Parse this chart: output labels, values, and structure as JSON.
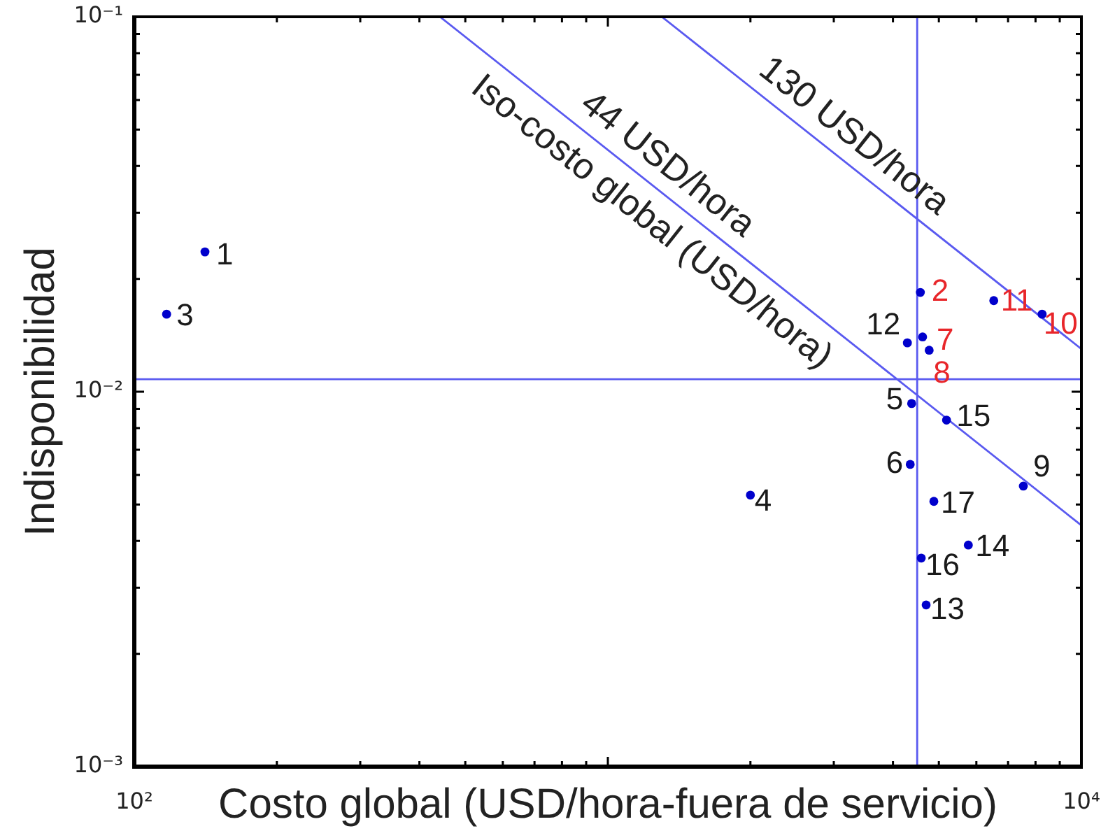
{
  "chart_data": {
    "type": "scatter",
    "xlabel": "Costo global (USD/hora-fuera de servicio)",
    "ylabel": "Indisponibilidad",
    "log": "xy",
    "grid": false,
    "legend": false,
    "xlim": [
      100,
      10000
    ],
    "ylim": [
      0.001,
      0.1
    ],
    "xticks": [
      {
        "value": 100,
        "label": "10²"
      },
      {
        "value": 200,
        "label": null
      },
      {
        "value": 300,
        "label": null
      },
      {
        "value": 400,
        "label": null
      },
      {
        "value": 500,
        "label": null
      },
      {
        "value": 600,
        "label": null
      },
      {
        "value": 700,
        "label": null
      },
      {
        "value": 800,
        "label": null
      },
      {
        "value": 900,
        "label": null
      },
      {
        "value": 1000,
        "label": null
      },
      {
        "value": 2000,
        "label": null
      },
      {
        "value": 3000,
        "label": null
      },
      {
        "value": 4000,
        "label": null
      },
      {
        "value": 5000,
        "label": null
      },
      {
        "value": 6000,
        "label": null
      },
      {
        "value": 7000,
        "label": null
      },
      {
        "value": 8000,
        "label": null
      },
      {
        "value": 9000,
        "label": null
      },
      {
        "value": 10000,
        "label": "10⁴"
      }
    ],
    "yticks": [
      {
        "value": 0.001,
        "label": "10⁻³"
      },
      {
        "value": 0.002,
        "label": null
      },
      {
        "value": 0.003,
        "label": null
      },
      {
        "value": 0.004,
        "label": null
      },
      {
        "value": 0.005,
        "label": null
      },
      {
        "value": 0.006,
        "label": null
      },
      {
        "value": 0.007,
        "label": null
      },
      {
        "value": 0.008,
        "label": null
      },
      {
        "value": 0.009,
        "label": null
      },
      {
        "value": 0.01,
        "label": "10⁻²"
      },
      {
        "value": 0.02,
        "label": null
      },
      {
        "value": 0.03,
        "label": null
      },
      {
        "value": 0.04,
        "label": null
      },
      {
        "value": 0.05,
        "label": null
      },
      {
        "value": 0.06,
        "label": null
      },
      {
        "value": 0.07,
        "label": null
      },
      {
        "value": 0.08,
        "label": null
      },
      {
        "value": 0.09,
        "label": null
      },
      {
        "value": 0.1,
        "label": "10⁻¹"
      }
    ],
    "series": [
      {
        "type": "scatter",
        "marker": "circle",
        "color": "#0000cc",
        "x": [
          141,
          117,
          2000,
          4380,
          4350,
          7540,
          4290,
          4700,
          5770,
          5190,
          4590,
          4880
        ],
        "values": [
          0.0236,
          0.0161,
          0.0053,
          0.0093,
          0.0064,
          0.0056,
          0.0135,
          0.0027,
          0.0039,
          0.0084,
          0.0036,
          0.0051
        ]
      },
      {
        "type": "scatter",
        "marker": "circle",
        "color": "#0000cc",
        "x": [
          4570,
          4620,
          4770,
          8260,
          6530
        ],
        "values": [
          0.0184,
          0.014,
          0.0129,
          0.0161,
          0.0175
        ]
      },
      {
        "type": "line",
        "marker": "none",
        "name": "44 USD/hora",
        "color": "#5a5af0",
        "x": [
          442,
          10000
        ],
        "values": [
          0.1,
          0.0044
        ]
      },
      {
        "type": "line",
        "marker": "none",
        "name": "130 USD/hora",
        "color": "#5a5af0",
        "x": [
          1300,
          10000
        ],
        "values": [
          0.1,
          0.013
        ]
      }
    ],
    "ref_lines": [
      {
        "axis": "x",
        "value": 4500,
        "color": "#5a5af0"
      },
      {
        "axis": "y",
        "value": 0.0108,
        "color": "#5a5af0"
      }
    ],
    "annotations": [
      {
        "text": "1",
        "x": 141,
        "y": 0.0236
      },
      {
        "text": "2",
        "x": 4570,
        "y": 0.0184
      },
      {
        "text": "3",
        "x": 117,
        "y": 0.0161
      },
      {
        "text": "4",
        "x": 2000,
        "y": 0.0053
      },
      {
        "text": "5",
        "x": 4380,
        "y": 0.0093
      },
      {
        "text": "6",
        "x": 4350,
        "y": 0.0064
      },
      {
        "text": "7",
        "x": 4620,
        "y": 0.014
      },
      {
        "text": "8",
        "x": 4770,
        "y": 0.0129
      },
      {
        "text": "9",
        "x": 7540,
        "y": 0.0056
      },
      {
        "text": "10",
        "x": 8260,
        "y": 0.0161
      },
      {
        "text": "11",
        "x": 6530,
        "y": 0.0175
      },
      {
        "text": "12",
        "x": 4290,
        "y": 0.0135
      },
      {
        "text": "13",
        "x": 4700,
        "y": 0.0027
      },
      {
        "text": "14",
        "x": 5770,
        "y": 0.0039
      },
      {
        "text": "15",
        "x": 5190,
        "y": 0.0084
      },
      {
        "text": "16",
        "x": 4590,
        "y": 0.0036
      },
      {
        "text": "17",
        "x": 4880,
        "y": 0.0051
      },
      {
        "text": "Iso-costo global (USD/hora)",
        "x": 1350,
        "y": 0.0326
      }
    ]
  }
}
